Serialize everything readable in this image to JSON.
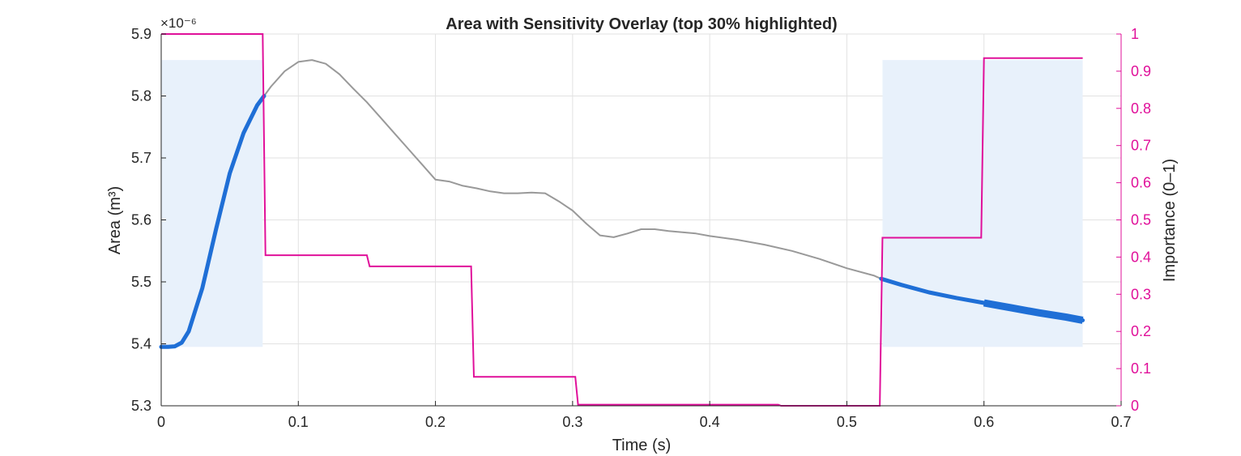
{
  "chart_data": {
    "type": "line",
    "title": "Area with Sensitivity Overlay (top 30% highlighted)",
    "xlabel": "Time (s)",
    "ylabel_left": "Area  (m³)",
    "ylabel_right": "Importance (0–1)",
    "y_exponent": "×10⁻⁶",
    "xlim": [
      0,
      0.7
    ],
    "ylim_left": [
      5.3,
      5.9
    ],
    "ylim_right": [
      0,
      1
    ],
    "x_ticks": [
      "0",
      "0.1",
      "0.2",
      "0.3",
      "0.4",
      "0.5",
      "0.6",
      "0.7"
    ],
    "y_left_ticks": [
      "5.3",
      "5.4",
      "5.5",
      "5.6",
      "5.7",
      "5.8",
      "5.9"
    ],
    "y_right_ticks": [
      "0",
      "0.1",
      "0.2",
      "0.3",
      "0.4",
      "0.5",
      "0.6",
      "0.7",
      "0.8",
      "0.9",
      "1"
    ],
    "grid": true,
    "colors": {
      "area": "#999999",
      "highlight": "#1f6fd6",
      "importance": "#e0109a",
      "shade": "#e8f1fb",
      "grid": "#e2e2e2",
      "axis": "#262626"
    },
    "area_series": {
      "x": [
        0,
        0.005,
        0.01,
        0.015,
        0.02,
        0.03,
        0.04,
        0.05,
        0.06,
        0.07,
        0.075,
        0.08,
        0.09,
        0.1,
        0.11,
        0.12,
        0.13,
        0.14,
        0.15,
        0.16,
        0.17,
        0.18,
        0.19,
        0.2,
        0.21,
        0.22,
        0.23,
        0.24,
        0.25,
        0.26,
        0.27,
        0.28,
        0.29,
        0.3,
        0.31,
        0.32,
        0.33,
        0.34,
        0.35,
        0.36,
        0.37,
        0.38,
        0.39,
        0.4,
        0.42,
        0.44,
        0.46,
        0.48,
        0.5,
        0.52,
        0.525,
        0.54,
        0.56,
        0.58,
        0.6,
        0.62,
        0.64,
        0.66,
        0.672
      ],
      "y": [
        5.395,
        5.395,
        5.396,
        5.402,
        5.42,
        5.49,
        5.585,
        5.675,
        5.74,
        5.785,
        5.8,
        5.815,
        5.84,
        5.855,
        5.858,
        5.852,
        5.835,
        5.812,
        5.79,
        5.765,
        5.74,
        5.715,
        5.69,
        5.665,
        5.662,
        5.655,
        5.651,
        5.646,
        5.643,
        5.643,
        5.644,
        5.643,
        5.63,
        5.615,
        5.594,
        5.575,
        5.572,
        5.578,
        5.585,
        5.585,
        5.582,
        5.58,
        5.578,
        5.574,
        5.568,
        5.56,
        5.55,
        5.537,
        5.522,
        5.51,
        5.505,
        5.495,
        5.483,
        5.474,
        5.466,
        5.458,
        5.45,
        5.443,
        5.438
      ]
    },
    "highlight_segments": [
      {
        "x_start": 0,
        "x_end": 0.075
      },
      {
        "x_start": 0.525,
        "x_end": 0.672
      }
    ],
    "highlight_bands": [
      {
        "x_start": 0,
        "x_end": 0.074,
        "y_bottom": 5.395,
        "y_top": 5.858
      },
      {
        "x_start": 0.526,
        "x_end": 0.672,
        "y_bottom": 5.395,
        "y_top": 5.858
      }
    ],
    "importance_series": {
      "x": [
        0,
        0.074,
        0.076,
        0.15,
        0.152,
        0.226,
        0.228,
        0.302,
        0.304,
        0.45,
        0.452,
        0.524,
        0.526,
        0.598,
        0.6,
        0.672
      ],
      "y": [
        1,
        1,
        0.405,
        0.405,
        0.375,
        0.375,
        0.078,
        0.078,
        0.003,
        0.003,
        0,
        0,
        0.452,
        0.452,
        0.935,
        0.935
      ]
    }
  }
}
